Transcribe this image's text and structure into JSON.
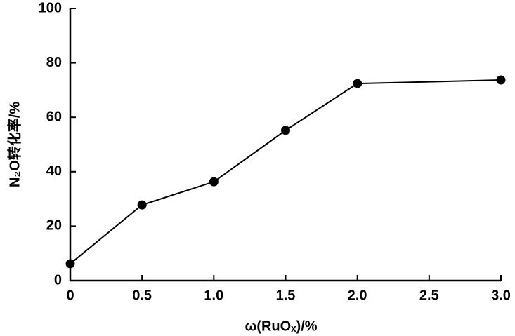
{
  "chart_data": {
    "type": "line",
    "x_label": "ω(RuOₓ)/%",
    "y_label": "N₂O转化率/%",
    "x": [
      0,
      0.5,
      1,
      1.5,
      2,
      3
    ],
    "series": [
      {
        "color": "#000000",
        "values": [
          6.2,
          27.8,
          36.3,
          55.2,
          72.4,
          73.7
        ]
      }
    ],
    "xlim": [
      0,
      3
    ],
    "xticks": [
      0,
      0.5,
      {
        "value": 1,
        "label": "1.0"
      },
      1.5,
      {
        "value": 2,
        "label": "2.0"
      },
      2.5,
      {
        "value": 3,
        "label": "3.0"
      }
    ],
    "ylim": [
      0,
      100
    ],
    "yticks": [
      0,
      20,
      40,
      60,
      80,
      100
    ]
  }
}
